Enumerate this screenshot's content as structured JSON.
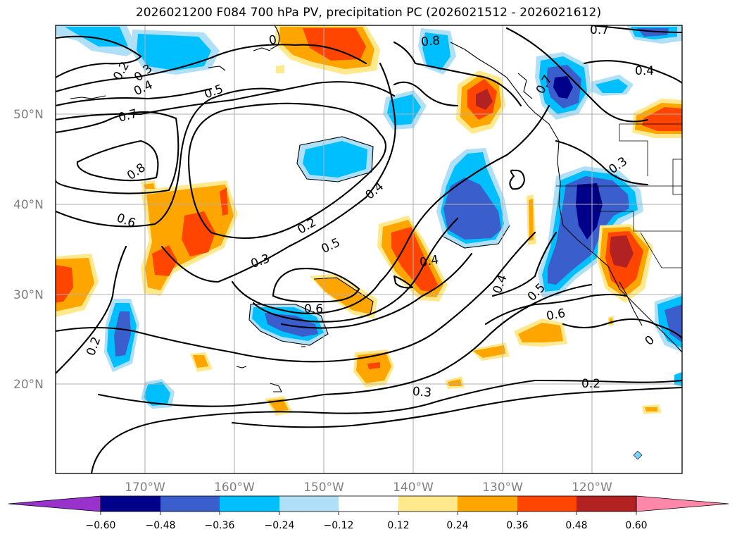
{
  "title": "2026021200 F084 700 hPa PV, precipitation PC (2026021512 - 2026021612)",
  "lat_labels": [
    "50°N",
    "40°N",
    "30°N",
    "20°N"
  ],
  "lon_labels": [
    "170°W",
    "160°W",
    "150°W",
    "140°W",
    "130°W",
    "120°W"
  ],
  "contour_labels": [
    "0.2",
    "0.3",
    "0.4",
    "0.5",
    "0.7",
    "0.8",
    "0.6",
    "0.5",
    "0.4",
    "0.2",
    "0.3",
    "0.5",
    "0.6",
    "0.4",
    "0.4",
    "0.5",
    "0.6",
    "0.2",
    "0.3",
    "0.8",
    "0.7",
    "0.7",
    "0.4",
    "0.3",
    "0.2",
    "0.6",
    "0.4",
    "0"
  ],
  "colorbar": {
    "ticks": [
      "−0.60",
      "−0.48",
      "−0.36",
      "−0.24",
      "−0.12",
      "0.12",
      "0.24",
      "0.36",
      "0.48",
      "0.60"
    ],
    "colors": [
      "#9932cc",
      "#00008b",
      "#3a5fcd",
      "#00bfff",
      "#b0e0f8",
      "#ffffff",
      "#ffe98c",
      "#ffa500",
      "#ff4500",
      "#b22222",
      "#ff88aa"
    ]
  },
  "colors": {
    "neg1": "#b0e0f8",
    "neg2": "#00bfff",
    "neg3": "#3a5fcd",
    "neg4": "#00008b",
    "pos1": "#ffe98c",
    "pos2": "#ffa500",
    "pos3": "#ff4500",
    "pos4": "#b22222"
  }
}
